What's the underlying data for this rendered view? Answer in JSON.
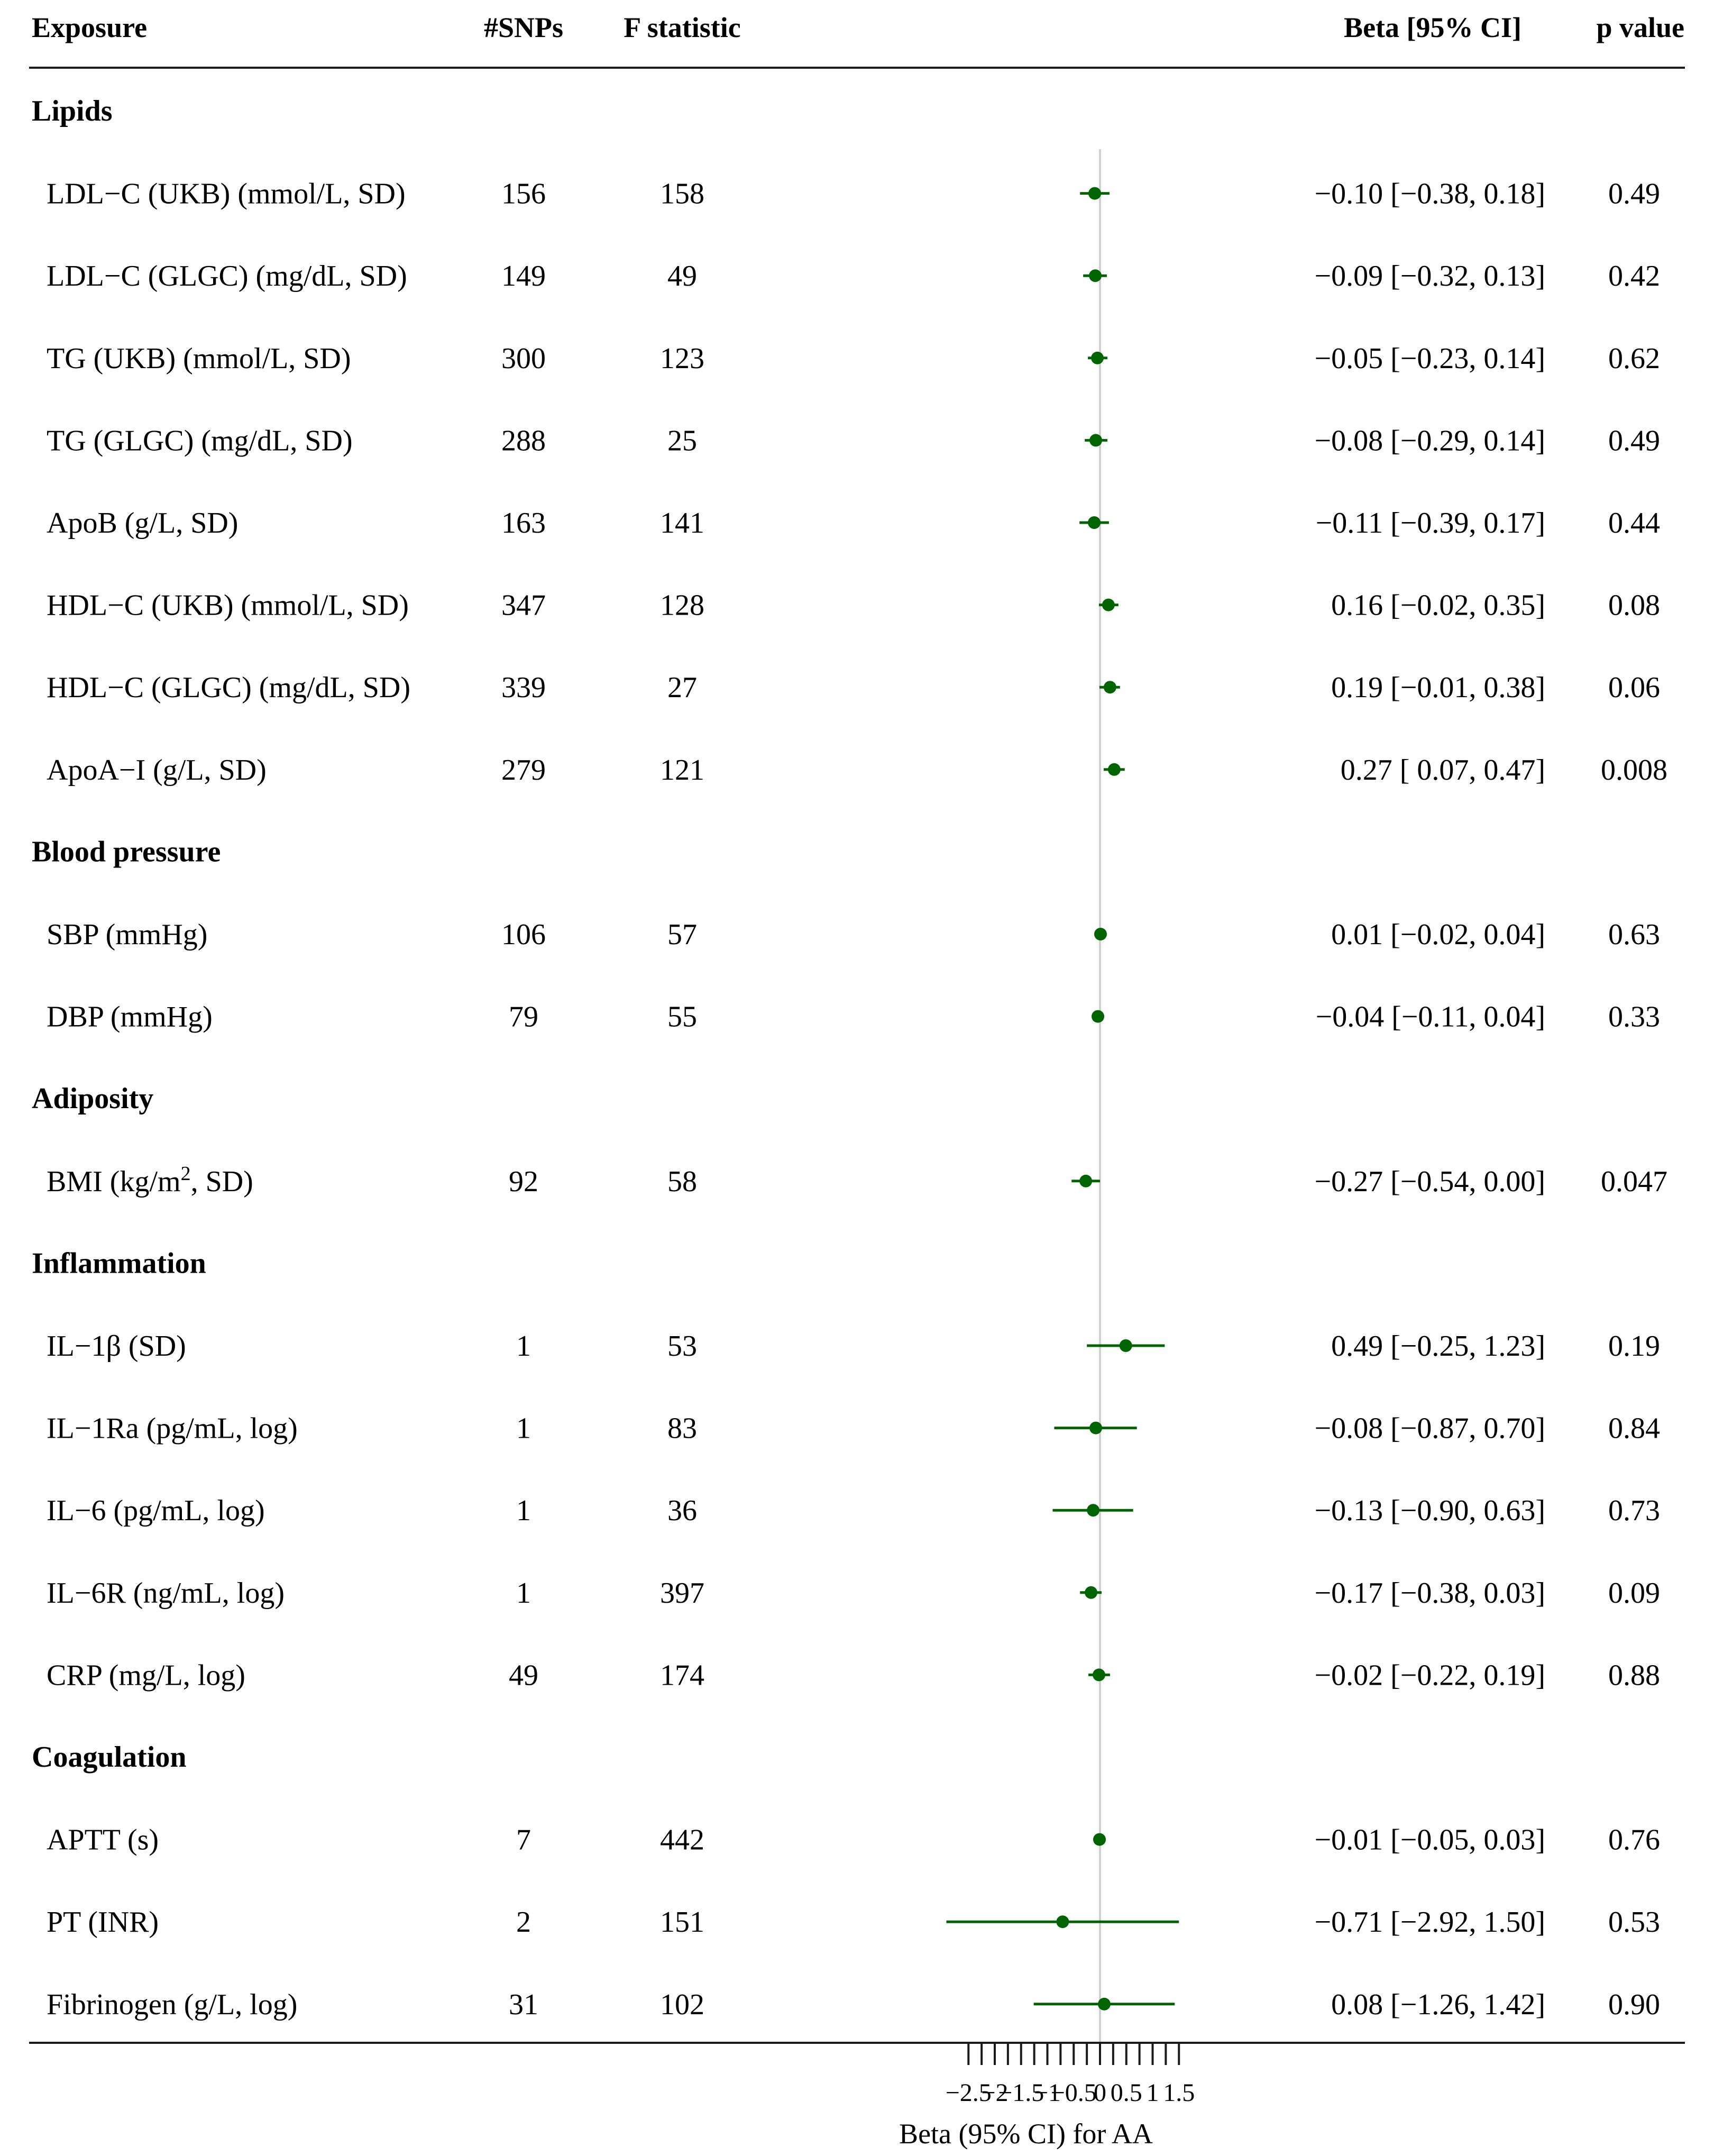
{
  "headers": {
    "exposure": "Exposure",
    "snps": "#SNPs",
    "f_statistic": "F statistic",
    "beta_ci": "Beta [95% CI]",
    "p_value": "p value"
  },
  "chart_data": {
    "type": "forest",
    "xlabel": "Beta (95% CI) for AA",
    "xlim": [
      -2.5,
      1.5
    ],
    "reference_line": 0,
    "ticks": [
      -2.5,
      -2,
      -1.5,
      -1,
      -0.5,
      0,
      0.5,
      1,
      1.5
    ],
    "tick_labels": [
      "−2.5",
      "−2",
      "−1.5",
      "−1",
      "−0.5",
      "0",
      "0.5",
      "1",
      "1.5"
    ],
    "point_color": "#006400",
    "groups": [
      {
        "name": "Lipids",
        "rows": [
          {
            "label": "LDL−C (UKB) (mmol/L, SD)",
            "snps": "156",
            "f": "158",
            "beta": -0.1,
            "lo": -0.38,
            "hi": 0.18,
            "ci_text": "−0.10 [−0.38, 0.18]",
            "p": "0.49"
          },
          {
            "label": "LDL−C (GLGC) (mg/dL, SD)",
            "snps": "149",
            "f": "49",
            "beta": -0.09,
            "lo": -0.32,
            "hi": 0.13,
            "ci_text": "−0.09 [−0.32, 0.13]",
            "p": "0.42"
          },
          {
            "label": "TG (UKB) (mmol/L, SD)",
            "snps": "300",
            "f": "123",
            "beta": -0.05,
            "lo": -0.23,
            "hi": 0.14,
            "ci_text": "−0.05 [−0.23, 0.14]",
            "p": "0.62"
          },
          {
            "label": "TG (GLGC) (mg/dL, SD)",
            "snps": "288",
            "f": "25",
            "beta": -0.08,
            "lo": -0.29,
            "hi": 0.14,
            "ci_text": "−0.08 [−0.29, 0.14]",
            "p": "0.49"
          },
          {
            "label": "ApoB (g/L, SD)",
            "snps": "163",
            "f": "141",
            "beta": -0.11,
            "lo": -0.39,
            "hi": 0.17,
            "ci_text": "−0.11 [−0.39, 0.17]",
            "p": "0.44"
          },
          {
            "label": "HDL−C (UKB) (mmol/L, SD)",
            "snps": "347",
            "f": "128",
            "beta": 0.16,
            "lo": -0.02,
            "hi": 0.35,
            "ci_text": "0.16 [−0.02, 0.35]",
            "p": "0.08"
          },
          {
            "label": "HDL−C (GLGC) (mg/dL, SD)",
            "snps": "339",
            "f": "27",
            "beta": 0.19,
            "lo": -0.01,
            "hi": 0.38,
            "ci_text": "0.19 [−0.01, 0.38]",
            "p": "0.06"
          },
          {
            "label": "ApoA−I (g/L, SD)",
            "snps": "279",
            "f": "121",
            "beta": 0.27,
            "lo": 0.07,
            "hi": 0.47,
            "ci_text": "0.27 [ 0.07, 0.47]",
            "p": "0.008"
          }
        ]
      },
      {
        "name": "Blood pressure",
        "rows": [
          {
            "label": "SBP (mmHg)",
            "snps": "106",
            "f": "57",
            "beta": 0.01,
            "lo": -0.02,
            "hi": 0.04,
            "ci_text": "0.01 [−0.02, 0.04]",
            "p": "0.63"
          },
          {
            "label": "DBP (mmHg)",
            "snps": "79",
            "f": "55",
            "beta": -0.04,
            "lo": -0.11,
            "hi": 0.04,
            "ci_text": "−0.04 [−0.11, 0.04]",
            "p": "0.33"
          }
        ]
      },
      {
        "name": "Adiposity",
        "rows": [
          {
            "label": "BMI (kg/m",
            "label_sup": "2",
            "label_tail": ", SD)",
            "snps": "92",
            "f": "58",
            "beta": -0.27,
            "lo": -0.54,
            "hi": 0.0,
            "ci_text": "−0.27 [−0.54, 0.00]",
            "p": "0.047"
          }
        ]
      },
      {
        "name": "Inflammation",
        "rows": [
          {
            "label": "IL−1β (SD)",
            "snps": "1",
            "f": "53",
            "beta": 0.49,
            "lo": -0.25,
            "hi": 1.23,
            "ci_text": "0.49 [−0.25, 1.23]",
            "p": "0.19"
          },
          {
            "label": "IL−1Ra (pg/mL, log)",
            "snps": "1",
            "f": "83",
            "beta": -0.08,
            "lo": -0.87,
            "hi": 0.7,
            "ci_text": "−0.08 [−0.87, 0.70]",
            "p": "0.84"
          },
          {
            "label": "IL−6 (pg/mL, log)",
            "snps": "1",
            "f": "36",
            "beta": -0.13,
            "lo": -0.9,
            "hi": 0.63,
            "ci_text": "−0.13 [−0.90, 0.63]",
            "p": "0.73"
          },
          {
            "label": "IL−6R (ng/mL, log)",
            "snps": "1",
            "f": "397",
            "beta": -0.17,
            "lo": -0.38,
            "hi": 0.03,
            "ci_text": "−0.17 [−0.38, 0.03]",
            "p": "0.09"
          },
          {
            "label": "CRP (mg/L, log)",
            "snps": "49",
            "f": "174",
            "beta": -0.02,
            "lo": -0.22,
            "hi": 0.19,
            "ci_text": "−0.02 [−0.22, 0.19]",
            "p": "0.88"
          }
        ]
      },
      {
        "name": "Coagulation",
        "rows": [
          {
            "label": "APTT (s)",
            "snps": "7",
            "f": "442",
            "beta": -0.01,
            "lo": -0.05,
            "hi": 0.03,
            "ci_text": "−0.01 [−0.05, 0.03]",
            "p": "0.76"
          },
          {
            "label": "PT (INR)",
            "snps": "2",
            "f": "151",
            "beta": -0.71,
            "lo": -2.92,
            "hi": 1.5,
            "ci_text": "−0.71 [−2.92, 1.50]",
            "p": "0.53"
          },
          {
            "label": "Fibrinogen (g/L, log)",
            "snps": "31",
            "f": "102",
            "beta": 0.08,
            "lo": -1.26,
            "hi": 1.42,
            "ci_text": "0.08 [−1.26, 1.42]",
            "p": "0.90"
          }
        ]
      }
    ]
  }
}
